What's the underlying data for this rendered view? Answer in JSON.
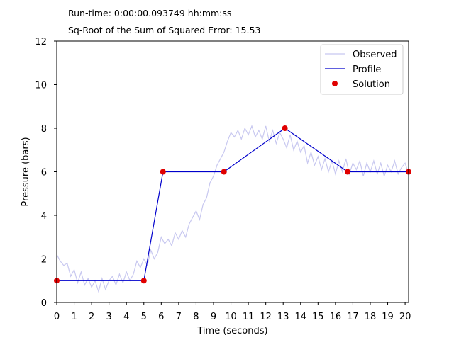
{
  "header": {
    "runtime_label": "Run-time:",
    "runtime_value": "0:00:00.093749 hh:mm:ss",
    "sse_label": "Sq-Root of the Sum of Squared Error:",
    "sse_value": "15.53"
  },
  "chart_data": {
    "type": "line",
    "title": "",
    "xlabel": "Time (seconds)",
    "ylabel": "Pressure (bars)",
    "xlim": [
      0,
      20.2
    ],
    "ylim": [
      0,
      12
    ],
    "xticks": [
      0,
      1,
      2,
      3,
      4,
      5,
      6,
      7,
      8,
      9,
      10,
      11,
      12,
      13,
      14,
      15,
      16,
      17,
      18,
      19,
      20
    ],
    "yticks": [
      0,
      2,
      4,
      6,
      8,
      10,
      12
    ],
    "grid": false,
    "legend": "top-right",
    "colors": {
      "observed": "#c8c8f0",
      "profile": "#0000cc",
      "solution": "#e00000"
    },
    "series": [
      {
        "name": "Observed",
        "kind": "line",
        "x": [
          0,
          0.2,
          0.4,
          0.6,
          0.8,
          1.0,
          1.2,
          1.4,
          1.6,
          1.8,
          2.0,
          2.2,
          2.4,
          2.6,
          2.8,
          3.0,
          3.2,
          3.4,
          3.6,
          3.8,
          4.0,
          4.2,
          4.4,
          4.6,
          4.8,
          5.0,
          5.2,
          5.4,
          5.6,
          5.8,
          6.0,
          6.2,
          6.4,
          6.6,
          6.8,
          7.0,
          7.2,
          7.4,
          7.6,
          7.8,
          8.0,
          8.2,
          8.4,
          8.6,
          8.8,
          9.0,
          9.2,
          9.4,
          9.6,
          9.8,
          10.0,
          10.2,
          10.4,
          10.6,
          10.8,
          11.0,
          11.2,
          11.4,
          11.6,
          11.8,
          12.0,
          12.2,
          12.4,
          12.6,
          12.8,
          13.0,
          13.2,
          13.4,
          13.6,
          13.8,
          14.0,
          14.2,
          14.4,
          14.6,
          14.8,
          15.0,
          15.2,
          15.4,
          15.6,
          15.8,
          16.0,
          16.2,
          16.4,
          16.6,
          16.8,
          17.0,
          17.2,
          17.4,
          17.6,
          17.8,
          18.0,
          18.2,
          18.4,
          18.6,
          18.8,
          19.0,
          19.2,
          19.4,
          19.6,
          19.8,
          20.0,
          20.2
        ],
        "y": [
          2.2,
          1.9,
          1.7,
          1.8,
          1.2,
          1.5,
          0.9,
          1.4,
          0.8,
          1.1,
          0.7,
          1.0,
          0.5,
          1.1,
          0.6,
          1.0,
          1.2,
          0.8,
          1.3,
          0.9,
          1.4,
          1.0,
          1.3,
          1.9,
          1.6,
          2.0,
          1.7,
          2.4,
          2.0,
          2.3,
          3.0,
          2.7,
          2.9,
          2.6,
          3.2,
          2.9,
          3.3,
          3.0,
          3.6,
          3.9,
          4.2,
          3.8,
          4.5,
          4.8,
          5.5,
          5.8,
          6.3,
          6.6,
          6.9,
          7.4,
          7.8,
          7.6,
          7.9,
          7.5,
          8.0,
          7.7,
          8.1,
          7.6,
          7.9,
          7.5,
          8.1,
          7.4,
          7.9,
          7.3,
          7.8,
          7.5,
          7.1,
          7.7,
          7.0,
          7.4,
          6.9,
          7.2,
          6.4,
          6.9,
          6.3,
          6.7,
          6.1,
          6.6,
          6.0,
          6.5,
          5.9,
          6.5,
          6.0,
          6.6,
          5.9,
          6.4,
          6.1,
          6.5,
          5.8,
          6.4,
          6.0,
          6.5,
          5.9,
          6.4,
          5.8,
          6.3,
          6.0,
          6.5,
          5.9,
          6.2,
          6.4,
          5.9
        ]
      },
      {
        "name": "Profile",
        "kind": "line",
        "x": [
          0,
          5,
          6.1,
          9.6,
          13.1,
          16.7,
          20.2
        ],
        "y": [
          1,
          1,
          6,
          6,
          8,
          6,
          6
        ]
      },
      {
        "name": "Solution",
        "kind": "scatter",
        "x": [
          0,
          5,
          6.1,
          9.6,
          13.1,
          16.7,
          20.2
        ],
        "y": [
          1,
          1,
          6,
          6,
          8,
          6,
          6
        ]
      }
    ]
  }
}
